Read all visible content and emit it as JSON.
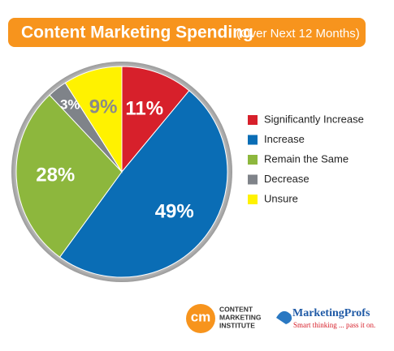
{
  "chart_data": {
    "type": "pie",
    "title": "Content Marketing Spending",
    "subtitle": "(Over Next 12 Months)",
    "categories": [
      "Significantly Increase",
      "Increase",
      "Remain the Same",
      "Decrease",
      "Unsure"
    ],
    "values": [
      11,
      49,
      28,
      3,
      9
    ],
    "value_labels": [
      "11%",
      "49%",
      "28%",
      "3%",
      "9%"
    ],
    "colors": [
      "#d7202b",
      "#0a6db5",
      "#8db73d",
      "#7f8389",
      "#fff200"
    ],
    "legend": "right"
  },
  "credits": {
    "cmi_mark": "cm",
    "cmi_lines": [
      "CONTENT",
      "MARKETING",
      "INSTITUTE"
    ],
    "mp_name": "MarketingProfs",
    "mp_tagline": "Smart thinking ... pass it on."
  }
}
